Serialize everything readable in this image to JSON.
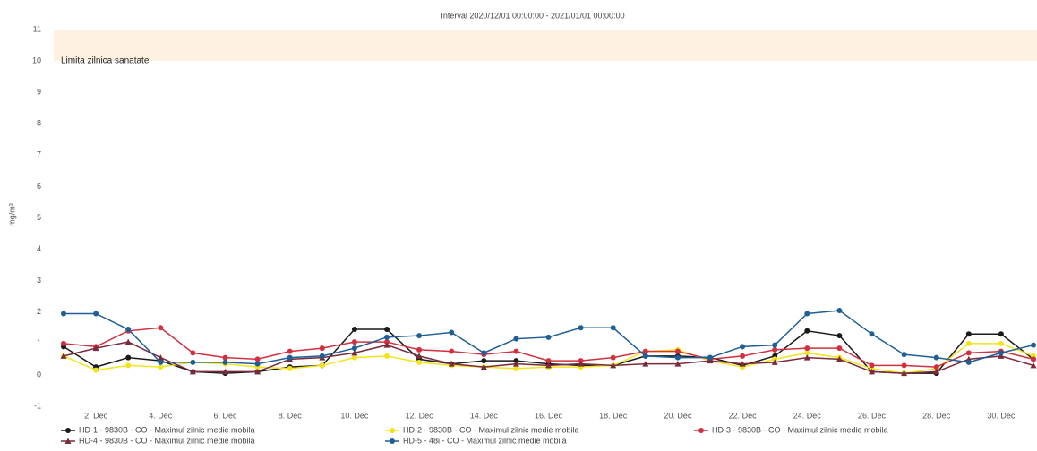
{
  "chart_data": {
    "type": "line",
    "title": "Interval 2020/12/01 00:00:00 - 2021/01/01 00:00:00",
    "y_label": "mg/m³",
    "categories": [
      null,
      "2. Dec",
      null,
      "4. Dec",
      null,
      "6. Dec",
      null,
      "8. Dec",
      null,
      "10. Dec",
      null,
      "12. Dec",
      null,
      "14. Dec",
      null,
      "16. Dec",
      null,
      "18. Dec",
      null,
      "20. Dec",
      null,
      "22. Dec",
      null,
      "24. Dec",
      null,
      "26. Dec",
      null,
      "28. Dec",
      null,
      "30. Dec",
      null
    ],
    "ylim": [
      -1,
      11
    ],
    "yticks": [
      -1,
      0,
      1,
      2,
      3,
      4,
      5,
      6,
      7,
      8,
      9,
      10,
      11
    ],
    "grid": false,
    "bands": [
      {
        "from": 10,
        "to": 11,
        "label": "Limita zilnica sanatate",
        "color": "#fdf2e2"
      }
    ],
    "series": [
      {
        "name": "HD-1 - 9830B - CO - Maximul zilnic medie mobila",
        "color": "#1a1a1a",
        "marker": "circle",
        "values": [
          0.9,
          0.25,
          0.55,
          0.45,
          0.1,
          0.05,
          0.1,
          0.25,
          0.3,
          1.45,
          1.45,
          0.5,
          0.35,
          0.45,
          0.45,
          0.35,
          0.3,
          0.3,
          0.6,
          0.6,
          0.55,
          0.3,
          0.6,
          1.4,
          1.25,
          0.1,
          0.05,
          0.05,
          1.3,
          1.3,
          0.5
        ]
      },
      {
        "name": "HD-2 - 9830B - CO - Maximul zilnic medie mobila",
        "color": "#f2e41c",
        "marker": "circle",
        "values": [
          0.6,
          0.15,
          0.3,
          0.25,
          0.4,
          0.35,
          0.25,
          0.2,
          0.3,
          0.55,
          0.6,
          0.4,
          0.3,
          0.25,
          0.2,
          0.25,
          0.25,
          0.3,
          0.75,
          0.8,
          0.45,
          0.25,
          0.5,
          0.7,
          0.55,
          0.2,
          0.05,
          0.2,
          1.0,
          1.0,
          0.6
        ]
      },
      {
        "name": "HD-3 - 9830B - CO - Maximul zilnic medie mobila",
        "color": "#d0303f",
        "marker": "circle",
        "values": [
          1.0,
          0.9,
          1.4,
          1.5,
          0.7,
          0.55,
          0.5,
          0.75,
          0.85,
          1.05,
          1.05,
          0.8,
          0.75,
          0.65,
          0.75,
          0.45,
          0.45,
          0.55,
          0.75,
          0.75,
          0.5,
          0.6,
          0.8,
          0.85,
          0.85,
          0.3,
          0.3,
          0.25,
          0.7,
          0.75,
          0.5
        ]
      },
      {
        "name": "HD-4 - 9830B - CO - Maximul zilnic medie mobila",
        "color": "#7a2a3a",
        "marker": "triangle",
        "values": [
          0.6,
          0.85,
          1.05,
          0.55,
          0.1,
          0.1,
          0.1,
          0.5,
          0.55,
          0.7,
          0.95,
          0.6,
          0.35,
          0.25,
          0.35,
          0.3,
          0.35,
          0.3,
          0.35,
          0.35,
          0.45,
          0.35,
          0.4,
          0.55,
          0.5,
          0.1,
          0.05,
          0.1,
          0.5,
          0.6,
          0.3
        ]
      },
      {
        "name": "HD-5 - 48i - CO - Maximul zilnic medie mobila",
        "color": "#1f5f96",
        "marker": "circle",
        "values": [
          1.95,
          1.95,
          1.45,
          0.4,
          0.4,
          0.4,
          0.35,
          0.55,
          0.6,
          0.85,
          1.2,
          1.25,
          1.35,
          0.7,
          1.15,
          1.2,
          1.5,
          1.5,
          0.6,
          0.55,
          0.55,
          0.9,
          0.95,
          1.95,
          2.05,
          1.3,
          0.65,
          0.55,
          0.4,
          0.7,
          0.95
        ]
      }
    ]
  }
}
